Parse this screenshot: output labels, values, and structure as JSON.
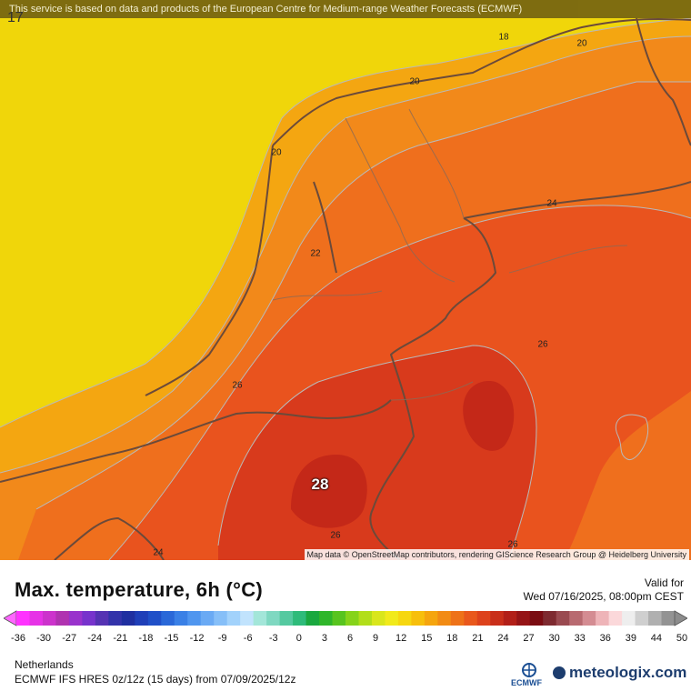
{
  "map": {
    "disclaimer": "This service is based on data and products of the European Centre for Medium-range Weather Forecasts (ECMWF)",
    "corner_value": "17",
    "attribution": "Map data © OpenStreetMap contributors, rendering GIScience Research Group @ Heidelberg University",
    "max_value_label": "28",
    "contour_labels": [
      "18",
      "20",
      "20",
      "20",
      "22",
      "24",
      "26",
      "26",
      "26",
      "24",
      "26"
    ],
    "colors": {
      "sea": "#f0d60a",
      "band20": "#f4a611",
      "band22": "#f2891a",
      "band24": "#ef6f1d",
      "band26": "#e9531e",
      "band28": "#d83a1c",
      "band30": "#c42818"
    }
  },
  "legend": {
    "title": "Max. temperature, 6h (°C)",
    "valid_label": "Valid for",
    "valid_date": "Wed 07/16/2025, 08:00pm CEST",
    "ticks": [
      "-36",
      "-30",
      "-27",
      "-24",
      "-21",
      "-18",
      "-15",
      "-12",
      "-9",
      "-6",
      "-3",
      "0",
      "3",
      "6",
      "9",
      "12",
      "15",
      "18",
      "21",
      "24",
      "27",
      "30",
      "33",
      "36",
      "39",
      "44",
      "50"
    ],
    "colors": [
      "#ff33ff",
      "#e633e6",
      "#cc33cc",
      "#b033b0",
      "#9933cc",
      "#7733cc",
      "#5533b3",
      "#3333aa",
      "#1f2fa0",
      "#1f3fb8",
      "#2050c8",
      "#2a68d8",
      "#3a80e6",
      "#5096ef",
      "#6aaaf4",
      "#86bff8",
      "#a2d2fb",
      "#c1e3fd",
      "#a3e6d9",
      "#7fd8c1",
      "#55c9a0",
      "#2ebb7a",
      "#1aa83f",
      "#2fb62a",
      "#58c41f",
      "#86d31a",
      "#b2de1a",
      "#d9e61c",
      "#f1ea1b",
      "#f6d710",
      "#f7bf0c",
      "#f5a50e",
      "#f28b14",
      "#ee7218",
      "#e9581c",
      "#dd421c",
      "#c92f1a",
      "#b21f18",
      "#951416",
      "#7a0c12",
      "#7e2a30",
      "#9a4a50",
      "#b86a70",
      "#d48c92",
      "#eeb4b8",
      "#fbd8da",
      "#eeeeee",
      "#cfcfcf",
      "#b0b0b0",
      "#939393"
    ]
  },
  "footer": {
    "region": "Netherlands",
    "model": "ECMWF IFS HRES 0z/12z (15 days) from 07/09/2025/12z",
    "ecmwf": "ECMWF",
    "brand": "meteologix.com"
  }
}
